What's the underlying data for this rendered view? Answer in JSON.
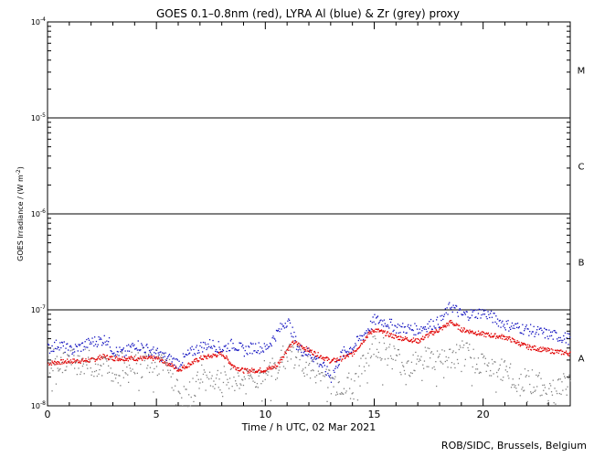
{
  "chart_data": {
    "type": "scatter",
    "title": "GOES 0.1–0.8nm (red), LYRA Al (blue) & Zr (grey) proxy",
    "xlabel": "Time / h UTC, 02 Mar 2021",
    "ylabel_main": "GOES Irradiance / (W m",
    "ylabel_sup": "-2",
    "ylabel_close": ")",
    "xlim": [
      0,
      24
    ],
    "ylim_log10": [
      -8,
      -4
    ],
    "x_ticks": [
      0,
      5,
      10,
      15,
      20
    ],
    "y_ticks": [
      {
        "base": "10",
        "exp": "-8",
        "value": -8
      },
      {
        "base": "10",
        "exp": "-7",
        "value": -7
      },
      {
        "base": "10",
        "exp": "-6",
        "value": -6
      },
      {
        "base": "10",
        "exp": "-5",
        "value": -5
      },
      {
        "base": "10",
        "exp": "-4",
        "value": -4
      }
    ],
    "class_lines": [
      -7,
      -6,
      -5
    ],
    "flare_classes": [
      {
        "label": "A",
        "center": -7.5
      },
      {
        "label": "B",
        "center": -6.5
      },
      {
        "label": "C",
        "center": -5.5
      },
      {
        "label": "M",
        "center": -4.5
      }
    ],
    "colors": {
      "red": "#e00000",
      "blue": "#1010c0",
      "grey": "#808080"
    },
    "series": [
      {
        "name": "GOES 0.1-0.8nm",
        "color": "red",
        "x": [
          0,
          1,
          2,
          2.5,
          3,
          4,
          5,
          5.5,
          6,
          7,
          8,
          8.5,
          9,
          10,
          10.5,
          11,
          11.3,
          12,
          13,
          13.5,
          14,
          14.7,
          15,
          16,
          17,
          17.5,
          18,
          18.5,
          19,
          20,
          21,
          22,
          23,
          24
        ],
        "log": [
          -7.55,
          -7.53,
          -7.52,
          -7.48,
          -7.5,
          -7.5,
          -7.5,
          -7.55,
          -7.62,
          -7.5,
          -7.45,
          -7.58,
          -7.63,
          -7.62,
          -7.58,
          -7.4,
          -7.33,
          -7.42,
          -7.53,
          -7.5,
          -7.45,
          -7.25,
          -7.2,
          -7.28,
          -7.32,
          -7.25,
          -7.2,
          -7.12,
          -7.2,
          -7.25,
          -7.28,
          -7.38,
          -7.42,
          -7.45
        ]
      },
      {
        "name": "LYRA Al proxy",
        "color": "blue",
        "x": [
          0,
          0.5,
          1,
          1.5,
          2,
          2.7,
          3,
          3.5,
          4,
          4.5,
          5,
          5.5,
          6,
          6.5,
          7,
          7.5,
          8,
          8.5,
          9,
          9.5,
          10,
          10.8,
          11,
          11.5,
          12,
          12.5,
          13,
          13.5,
          14,
          14.5,
          15,
          15.5,
          16,
          17,
          17.5,
          18,
          18.5,
          19,
          20,
          21,
          22,
          23,
          24
        ],
        "log": [
          -7.4,
          -7.35,
          -7.42,
          -7.38,
          -7.33,
          -7.3,
          -7.42,
          -7.45,
          -7.35,
          -7.4,
          -7.45,
          -7.5,
          -7.55,
          -7.45,
          -7.38,
          -7.35,
          -7.4,
          -7.35,
          -7.42,
          -7.38,
          -7.4,
          -7.15,
          -7.1,
          -7.4,
          -7.45,
          -7.55,
          -7.7,
          -7.45,
          -7.38,
          -7.25,
          -7.1,
          -7.12,
          -7.18,
          -7.2,
          -7.15,
          -7.12,
          -6.95,
          -7.05,
          -7.02,
          -7.15,
          -7.2,
          -7.25,
          -7.3
        ]
      },
      {
        "name": "LYRA Zr proxy",
        "color": "grey",
        "x": [
          0,
          1,
          2,
          3,
          4,
          5,
          5.5,
          6,
          6.3,
          7,
          8,
          9,
          10,
          10.5,
          11,
          12,
          13,
          14,
          15,
          16,
          16.5,
          17,
          18,
          19,
          20,
          20.5,
          21,
          21.5,
          22,
          23,
          24
        ],
        "log": [
          -7.55,
          -7.52,
          -7.55,
          -7.6,
          -7.52,
          -7.55,
          -7.6,
          -7.85,
          -7.95,
          -7.7,
          -7.72,
          -7.75,
          -7.65,
          -7.6,
          -7.42,
          -7.6,
          -7.75,
          -7.8,
          -7.35,
          -7.5,
          -7.6,
          -7.45,
          -7.55,
          -7.45,
          -7.55,
          -7.65,
          -7.6,
          -7.8,
          -7.7,
          -7.85,
          -7.75
        ]
      }
    ]
  },
  "footer": {
    "credit": "ROB/SIDC, Brussels, Belgium"
  }
}
